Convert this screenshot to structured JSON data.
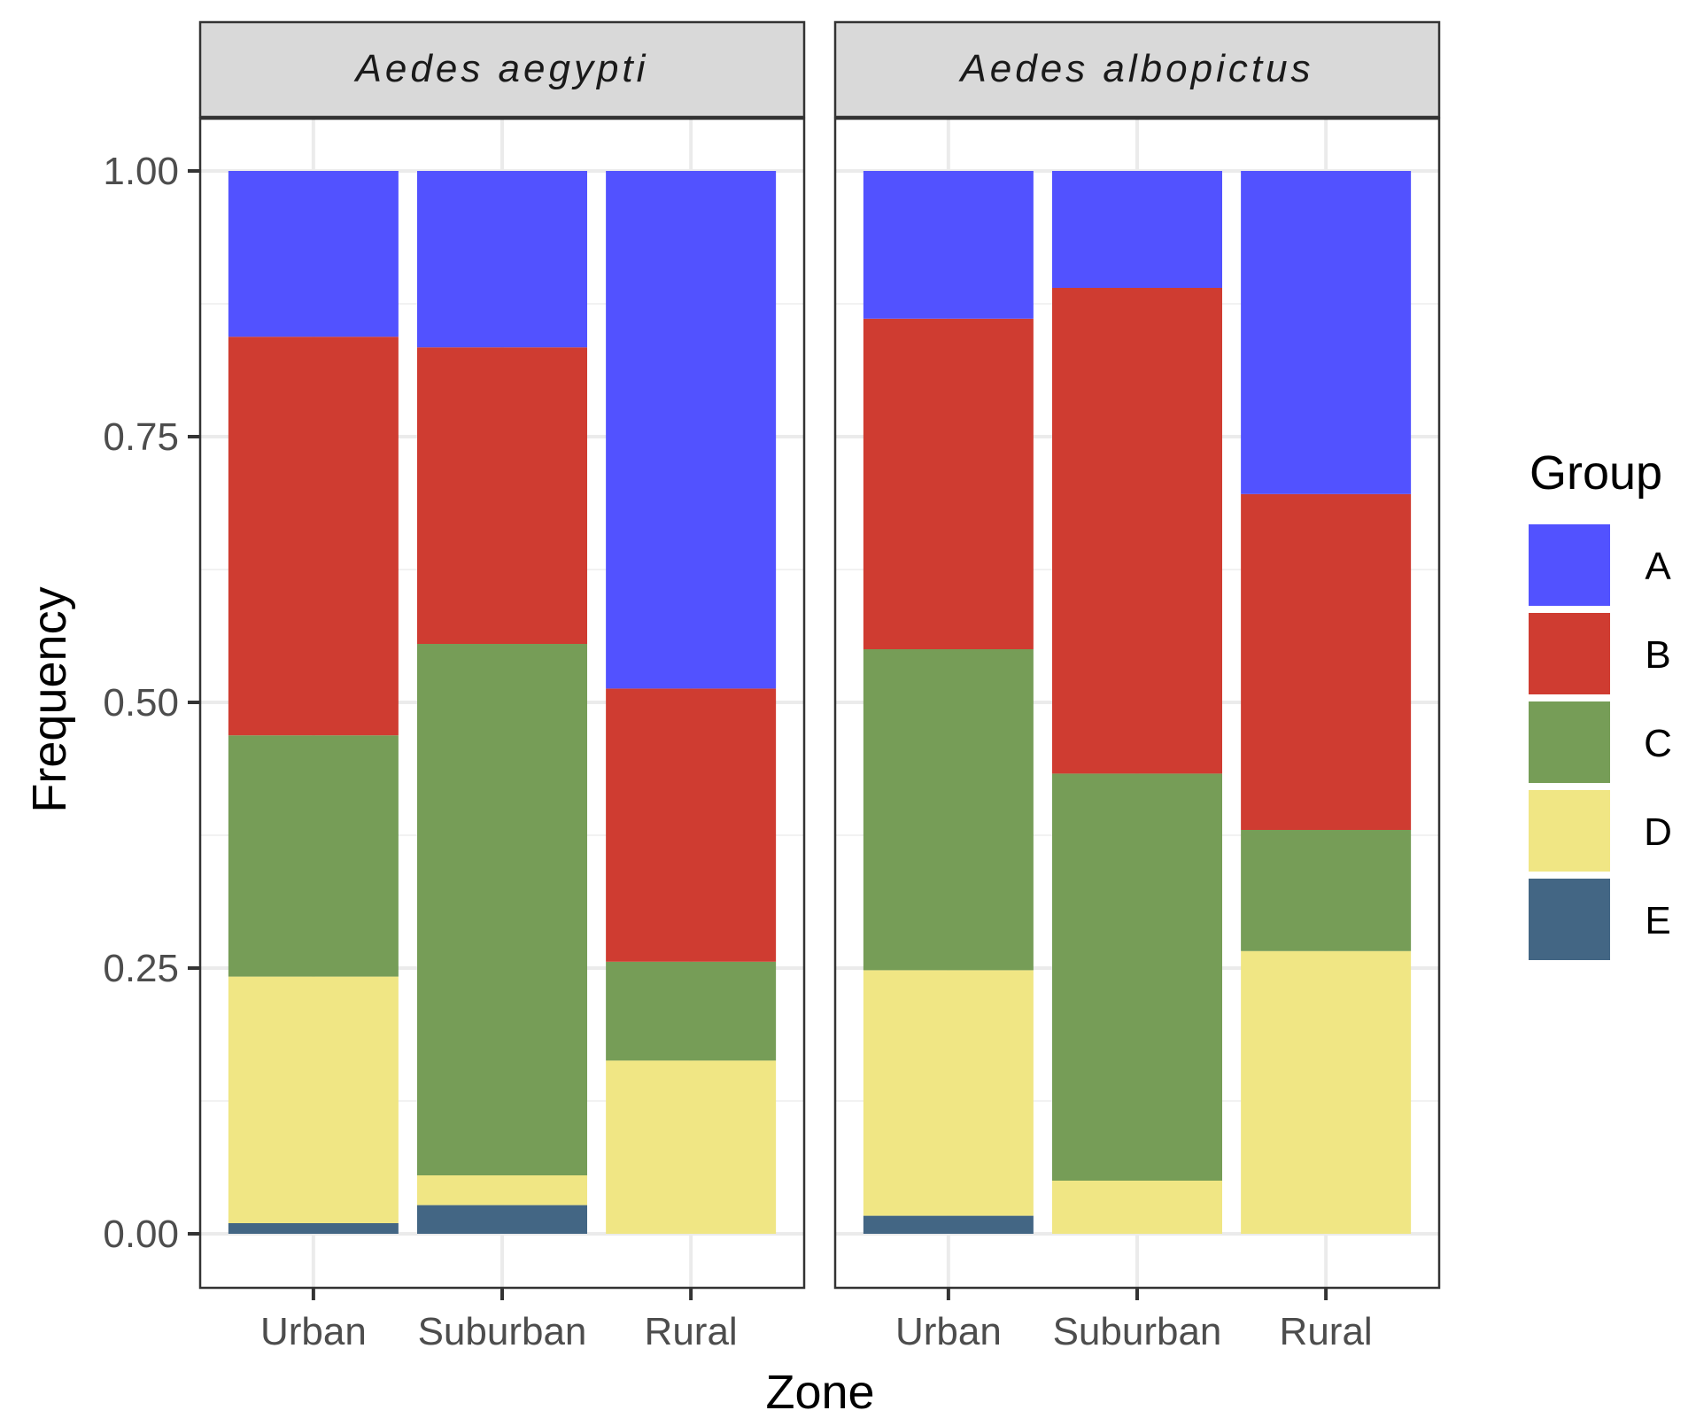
{
  "chart_data": {
    "type": "bar",
    "stacked": true,
    "xlabel": "Zone",
    "ylabel": "Frequency",
    "ylim": [
      0,
      1
    ],
    "yticks": [
      "0.00",
      "0.25",
      "0.50",
      "0.75",
      "1.00"
    ],
    "categories": [
      "Urban",
      "Suburban",
      "Rural"
    ],
    "legend": {
      "title": "Group",
      "position": "right",
      "entries": [
        "A",
        "B",
        "C",
        "D",
        "E"
      ]
    },
    "colors": {
      "A": "#5252ff",
      "B": "#cf3c31",
      "C": "#769d57",
      "D": "#f0e684",
      "E": "#436684"
    },
    "panels": [
      {
        "title": "Aedes aegypti",
        "series": [
          {
            "name": "E",
            "values": [
              0.01,
              0.027,
              0.0
            ]
          },
          {
            "name": "D",
            "values": [
              0.232,
              0.028,
              0.163
            ]
          },
          {
            "name": "C",
            "values": [
              0.227,
              0.5,
              0.093
            ]
          },
          {
            "name": "B",
            "values": [
              0.375,
              0.279,
              0.257
            ]
          },
          {
            "name": "A",
            "values": [
              0.156,
              0.166,
              0.487
            ]
          }
        ]
      },
      {
        "title": "Aedes albopictus",
        "series": [
          {
            "name": "E",
            "values": [
              0.017,
              0.0,
              0.0
            ]
          },
          {
            "name": "D",
            "values": [
              0.231,
              0.05,
              0.266
            ]
          },
          {
            "name": "C",
            "values": [
              0.302,
              0.383,
              0.114
            ]
          },
          {
            "name": "B",
            "values": [
              0.311,
              0.457,
              0.316
            ]
          },
          {
            "name": "A",
            "values": [
              0.139,
              0.11,
              0.304
            ]
          }
        ]
      }
    ]
  }
}
